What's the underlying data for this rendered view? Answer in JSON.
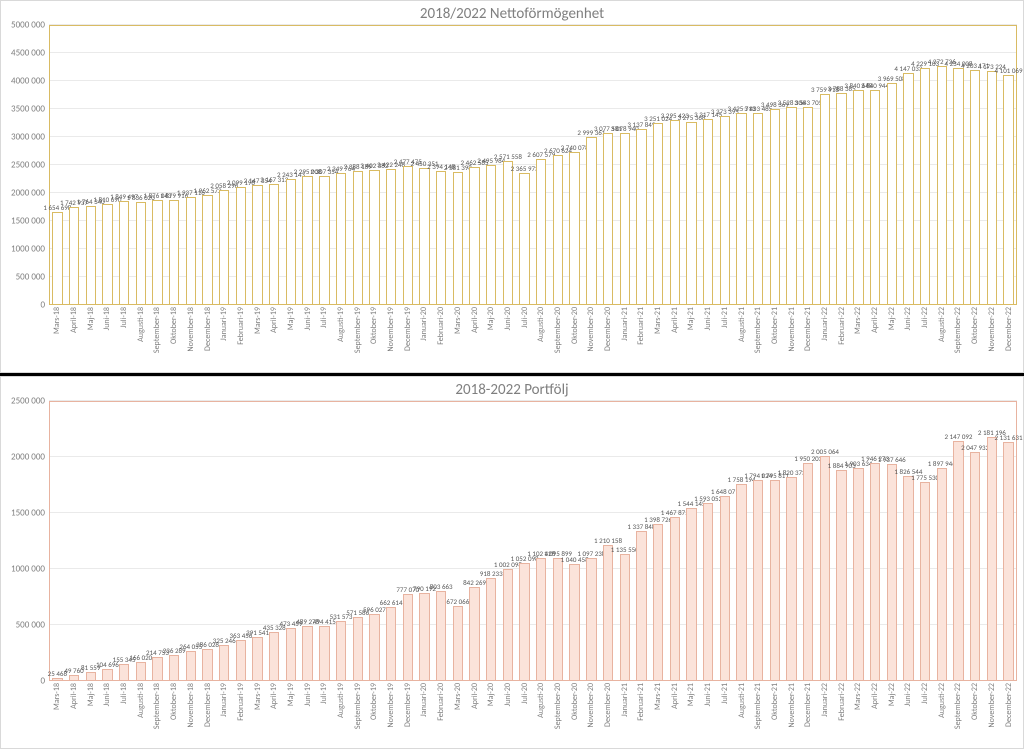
{
  "chart1": {
    "type": "bar",
    "title": "2018/2022 Nettoförmögenhet",
    "title_fontsize": 15,
    "title_color": "#7f7f7f",
    "background_color": "#ffffff",
    "grid_color": "#eaeaea",
    "border_color": "#d9bb63",
    "bar_fill": "#ffffff",
    "bar_border": "#d9bb63",
    "bar_width_ratio": 0.62,
    "label_fontsize": 7,
    "axis_fontsize": 9,
    "axis_color": "#7f7f7f",
    "ylim": [
      0,
      5000000
    ],
    "ytick_step": 500000,
    "yticks": [
      "0",
      "500 000",
      "1000 000",
      "1500 000",
      "2000 000",
      "2500 000",
      "3000 000",
      "3500 000",
      "4000 000",
      "4500 000",
      "5000 000"
    ],
    "categories": [
      "Mars-18",
      "April-18",
      "Maj-18",
      "Juni-18",
      "Juli-18",
      "Augusti-18",
      "September-18",
      "Oktober-18",
      "November-18",
      "December-18",
      "Januari-19",
      "Februari-19",
      "Mars-19",
      "April-19",
      "Maj-19",
      "Juni-19",
      "Juli-19",
      "Augusti-19",
      "September-19",
      "Oktober-19",
      "November-19",
      "December-19",
      "Januari-20",
      "Februari-20",
      "Mars-20",
      "April-20",
      "Maj-20",
      "Juni-20",
      "Juli-20",
      "Augusti-20",
      "September-20",
      "Oktober-20",
      "November-20",
      "December-20",
      "Januari-21",
      "Februari-21",
      "Mars-21",
      "April-21",
      "Maj-21",
      "Juni-21",
      "Juli-21",
      "Augusti-21",
      "September-21",
      "Oktober-21",
      "November-21",
      "December-21",
      "Januari-22",
      "Februari-22",
      "Mars-22",
      "April-22",
      "Maj-22",
      "Juni-22",
      "Juli-22",
      "Augusti-22",
      "September-22",
      "Oktober-22",
      "November-22",
      "December-22"
    ],
    "values": [
      1654698,
      1742937,
      1764340,
      1810690,
      1849497,
      1836020,
      1876043,
      1879916,
      1937116,
      1962572,
      2058296,
      2099198,
      2147354,
      2167313,
      2243143,
      2295008,
      2307354,
      2349764,
      2388189,
      2402382,
      2422248,
      2477475,
      2450351,
      2394148,
      2381398,
      2462585,
      2495984,
      2571558,
      2365973,
      2607579,
      2670624,
      2740078,
      2999361,
      3077581,
      3078940,
      3137849,
      3251024,
      3295423,
      3275368,
      3317145,
      3373395,
      3425713,
      3433485,
      3498369,
      3528306,
      3543705,
      3759918,
      3788385,
      3840648,
      3840944,
      3969508,
      4147033,
      4229103,
      4272736,
      4234008,
      4203171,
      4173224,
      4101069
    ],
    "value_labels": [
      "1 654 698",
      "1 742 937",
      "1 764 340",
      "1 810 690",
      "1 849 497",
      "1 836 020",
      "1 876 043",
      "1 879 916",
      "1 937 116",
      "1 962 572",
      "2 058 296",
      "2 099 198",
      "2 147 354",
      "2 167 313",
      "2 243 143",
      "2 295 008",
      "2 307 354",
      "2 349 764",
      "2 388 189",
      "2 402 382",
      "2 422 248",
      "2 477 475",
      "2 450 351",
      "2 394 148",
      "2 381 398",
      "2 462 585",
      "2 495 984",
      "2 571 558",
      "2 365 973",
      "2 607 579",
      "2 670 624",
      "2 740 078",
      "2 999 361",
      "3 077 581",
      "3 078 940",
      "3 137 849",
      "3 251 024",
      "3 295 423",
      "3 275 368",
      "3 317 145",
      "3 373 395",
      "3 425 713",
      "3 433 485",
      "3 498 369",
      "3 528 306",
      "3 543 705",
      "3 759 918",
      "3 788 385",
      "3 840 648",
      "3 840 944",
      "3 969 508",
      "4 147 033",
      "4 229 103",
      "4 272 736",
      "4 234 008",
      "4 203 171",
      "4 173 224",
      "4 101 069"
    ]
  },
  "chart2": {
    "type": "bar",
    "title": "2018-2022 Portfölj",
    "title_fontsize": 15,
    "title_color": "#7f7f7f",
    "background_color": "#ffffff",
    "grid_color": "#eaeaea",
    "border_color": "#e8b3a0",
    "bar_fill": "#fbe3da",
    "bar_border": "#e8b3a0",
    "bar_width_ratio": 0.62,
    "label_fontsize": 7,
    "axis_fontsize": 9,
    "axis_color": "#7f7f7f",
    "ylim": [
      0,
      2500000
    ],
    "ytick_step": 500000,
    "yticks": [
      "0",
      "500 000",
      "1000 000",
      "1500 000",
      "2000 000",
      "2500 000"
    ],
    "categories": [
      "Mars-18",
      "April-18",
      "Maj-18",
      "Juni-18",
      "Juli-18",
      "Augusti-18",
      "September-18",
      "Oktober-18",
      "November-18",
      "December-18",
      "Januari-19",
      "Februari-19",
      "Mars-19",
      "April-19",
      "Maj-19",
      "Juni-19",
      "Juli-19",
      "Augusti-19",
      "September-19",
      "Oktober-19",
      "November-19",
      "December-19",
      "Januari-20",
      "Februari-20",
      "Mars-20",
      "April-20",
      "Maj-20",
      "Juni-20",
      "Juli-20",
      "Augusti-20",
      "September-20",
      "Oktober-20",
      "November-20",
      "December-20",
      "Januari-21",
      "Februari-21",
      "Mars-21",
      "April-21",
      "Maj-21",
      "Juni-21",
      "Juli-21",
      "Augusti-21",
      "September-21",
      "Oktober-21",
      "November-21",
      "December-21",
      "Januari-22",
      "Februari-22",
      "Mars-22",
      "April-22",
      "Maj-22",
      "Juni-22",
      "Juli-22",
      "Augusti-22",
      "September-22",
      "Oktober-22",
      "November-22",
      "December-22"
    ],
    "values": [
      25468,
      49760,
      81559,
      104696,
      155345,
      166020,
      214753,
      236289,
      264055,
      286028,
      325246,
      363456,
      391541,
      435328,
      473459,
      489278,
      494415,
      531573,
      571586,
      596027,
      662614,
      777070,
      790192,
      803663,
      672066,
      842269,
      918233,
      1002098,
      1052098,
      1102428,
      1095899,
      1040458,
      1097238,
      1210158,
      1135550,
      1337848,
      1398726,
      1467875,
      1544145,
      1593052,
      1648071,
      1758194,
      1794024,
      1795811,
      1820373,
      1950203,
      2005064,
      1884903,
      1903634,
      1946273,
      1937646,
      1826544,
      1775530,
      1897946,
      2147092,
      2047932,
      2181196,
      2131631
    ],
    "value_labels": [
      "25 468",
      "49 760",
      "81 559",
      "104 696",
      "155 345",
      "166 020",
      "214 753",
      "236 289",
      "264 055",
      "286 028",
      "325 246",
      "363 456",
      "391 541",
      "435 328",
      "473 459",
      "489 278",
      "494 415",
      "531 573",
      "571 586",
      "596 027",
      "662 614",
      "777 070",
      "790 192",
      "803 663",
      "672 066",
      "842 269",
      "918 233",
      "1 002 098",
      "1 052 098",
      "1 102 428",
      "1 095 899",
      "1 040 458",
      "1 097 238",
      "1 210 158",
      "1 135 550",
      "1 337 848",
      "1 398 726",
      "1 467 875",
      "1 544 145",
      "1 593 052",
      "1 648 071",
      "1 758 194",
      "1 794 024",
      "1 795 811",
      "1 820 373",
      "1 950 203",
      "2 005 064",
      "1 884 903",
      "1 903 634",
      "1 946 273",
      "1 937 646",
      "1 826 544",
      "1 775 530",
      "1 897 946",
      "2 147 092",
      "2 047 932",
      "2 181 196",
      "2 131 631"
    ]
  }
}
